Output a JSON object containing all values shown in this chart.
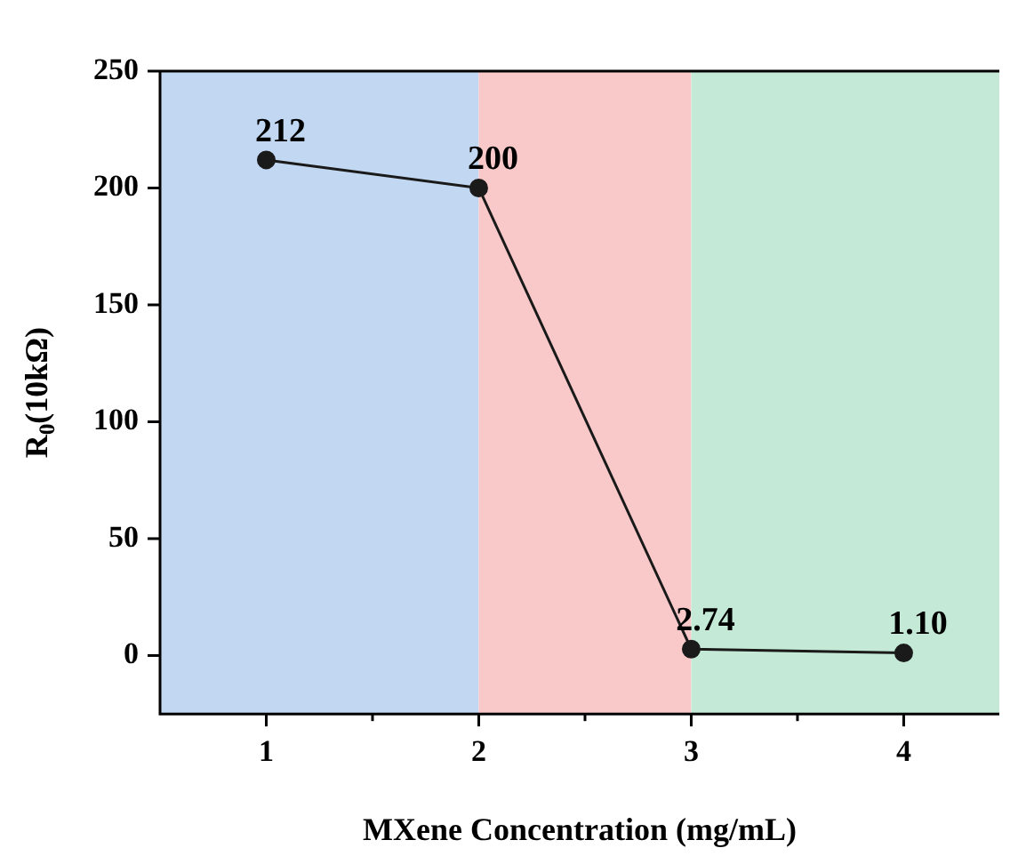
{
  "chart_data": {
    "type": "line",
    "xlabel": "MXene Concentration (mg/mL)",
    "ylabel": "R$_{0}$(10kΩ)",
    "x": [
      1,
      2,
      3,
      4
    ],
    "series": [
      {
        "color": "#1a1a1a",
        "values": [
          212,
          200,
          2.74,
          1.1
        ],
        "value_labels": [
          "212",
          "200",
          "2.74",
          "1.10"
        ]
      }
    ],
    "xlim": [
      0.5,
      4.45
    ],
    "xticks": [
      1,
      2,
      3,
      4
    ],
    "ylim": [
      -25,
      250
    ],
    "yticks": [
      0,
      50,
      100,
      150,
      200,
      250
    ],
    "bands": [
      {
        "axis": "x",
        "from": 0.5,
        "to": 2,
        "color": "#c2d7f2"
      },
      {
        "axis": "x",
        "from": 2,
        "to": 3,
        "color": "#f9c9c9"
      },
      {
        "axis": "x",
        "from": 3,
        "to": 4.45,
        "color": "#c4ead7"
      }
    ],
    "grid": false,
    "legend": false,
    "marker": "circle",
    "line_style": "solid"
  }
}
